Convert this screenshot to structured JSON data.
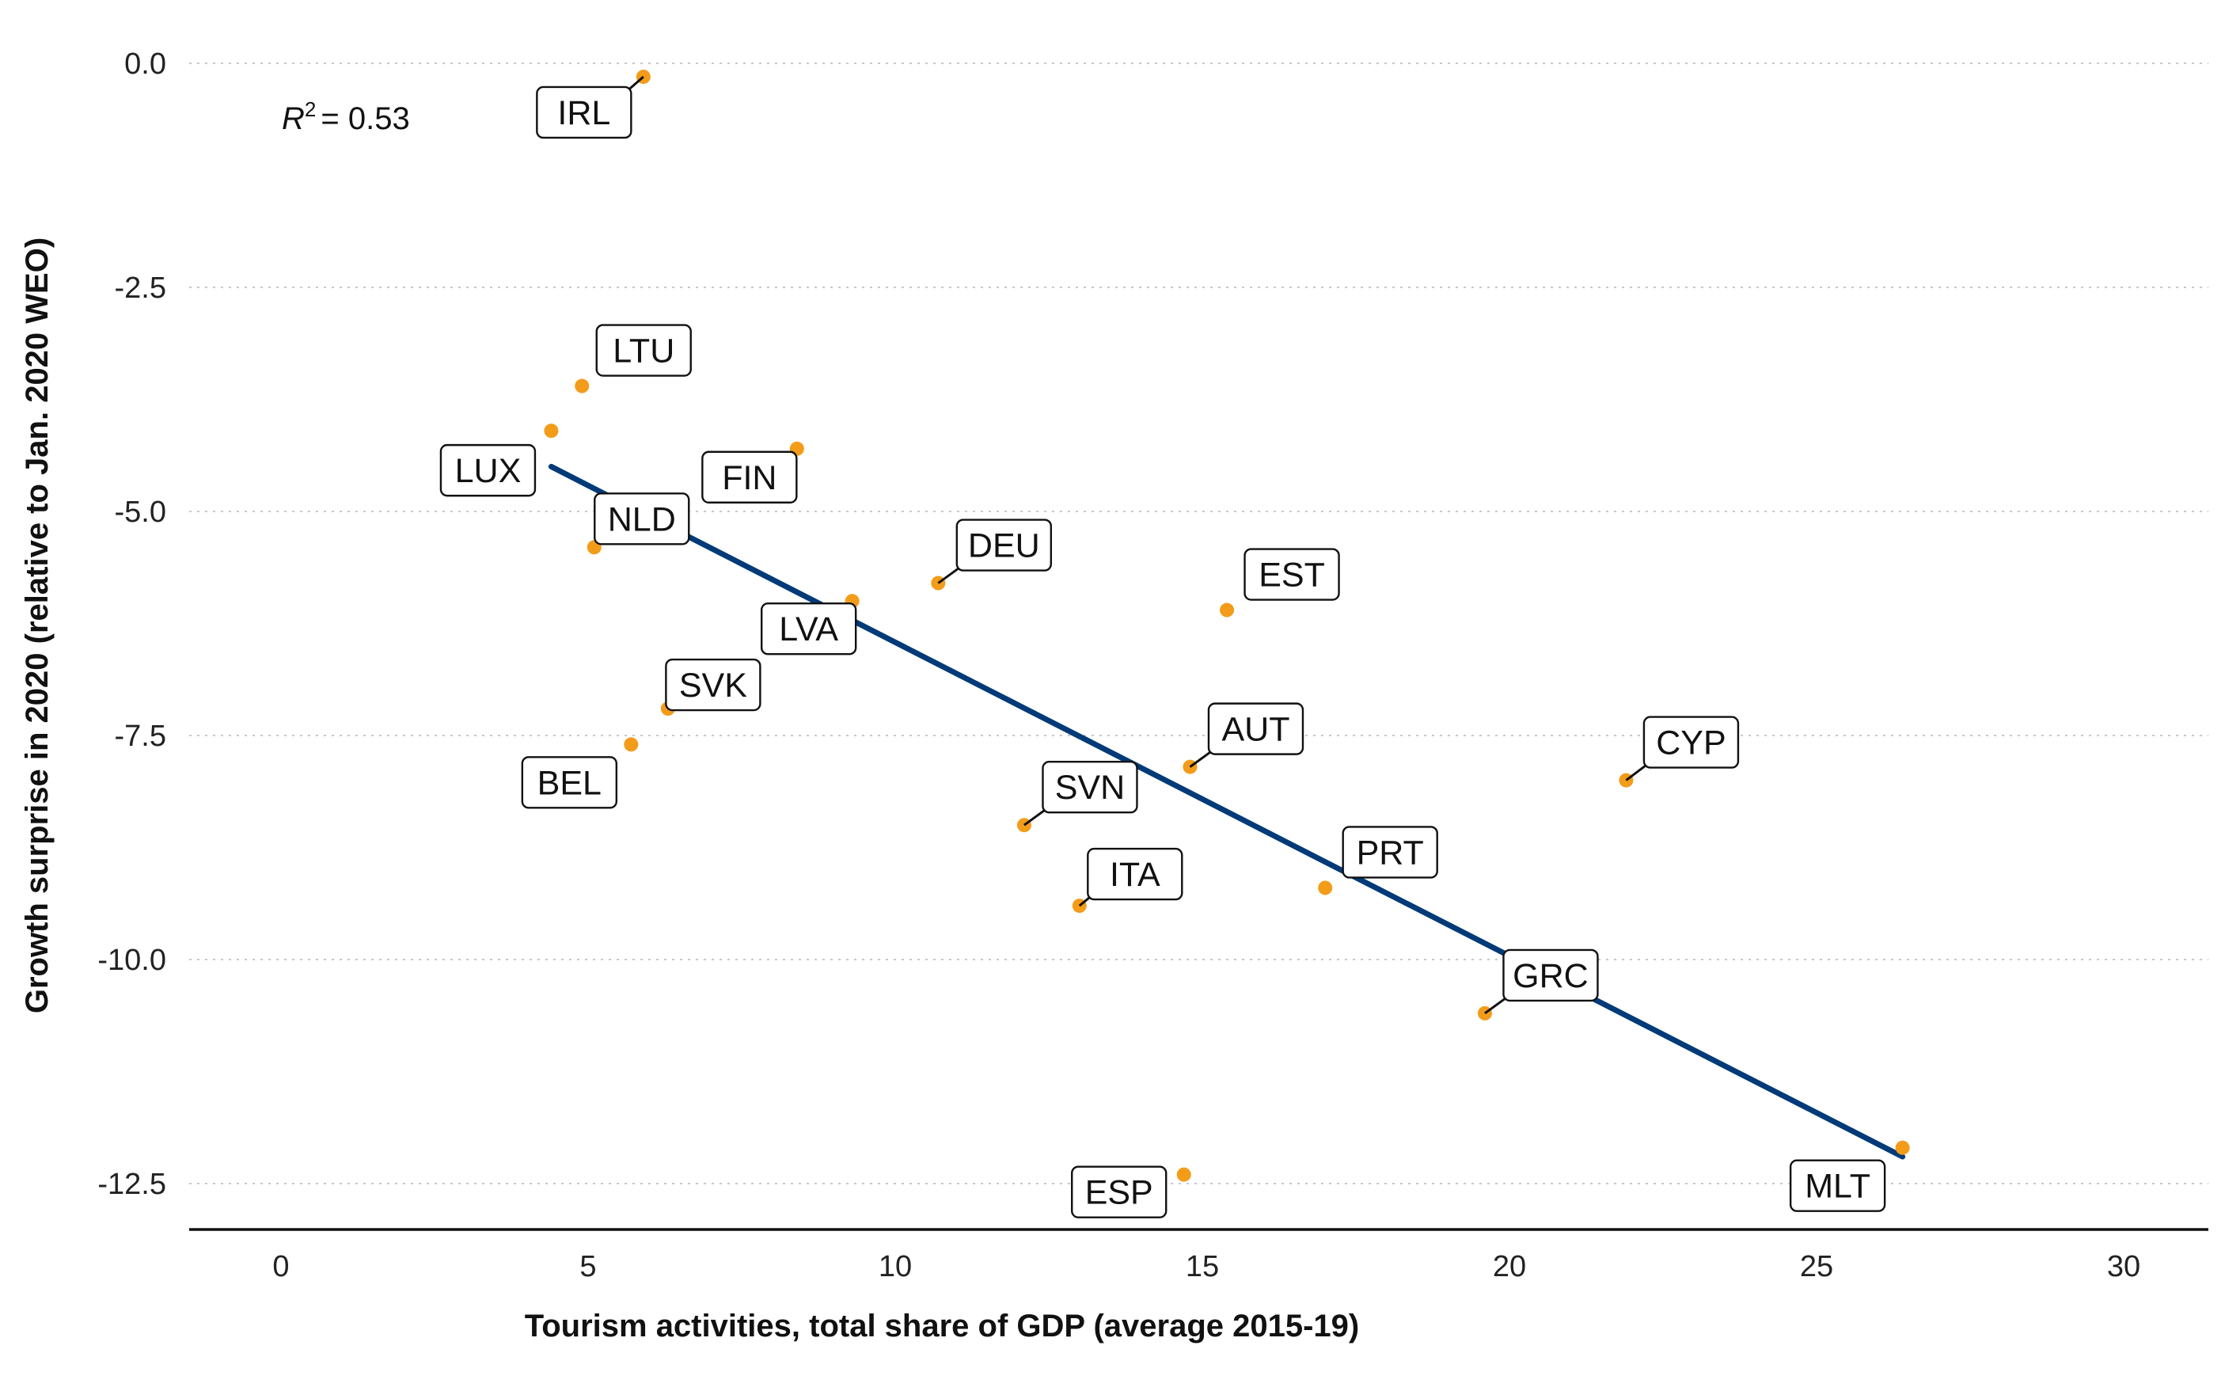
{
  "chart_data": {
    "type": "scatter",
    "xlabel": "Tourism activities, total share of GDP (average 2015-19)",
    "ylabel": "Growth surprise in 2020 (relative to Jan. 2020 WEO)",
    "xlim": [
      -1.5,
      31.5
    ],
    "ylim": [
      -13.0,
      0.2
    ],
    "x_ticks": [
      0,
      5,
      10,
      15,
      20,
      25,
      30
    ],
    "x_tick_labels": [
      "0",
      "5",
      "10",
      "15",
      "20",
      "25",
      "30"
    ],
    "y_ticks": [
      0.0,
      -2.5,
      -5.0,
      -7.5,
      -10.0,
      -12.5
    ],
    "y_tick_labels": [
      "0.0",
      "-2.5",
      "-5.0",
      "-7.5",
      "-10.0",
      "-12.5"
    ],
    "grid": "horizontal dotted",
    "annotation": {
      "r2_letter": "R",
      "r2_exp": "2",
      "r2_value": "= 0.53"
    },
    "fit_line": {
      "x": [
        4.4,
        26.4
      ],
      "y": [
        -4.5,
        -12.2
      ],
      "color": "#003a78"
    },
    "point_color": "#f39c1a",
    "points": [
      {
        "label": "IRL",
        "x": 5.9,
        "y": -0.15
      },
      {
        "label": "LTU",
        "x": 4.9,
        "y": -3.6
      },
      {
        "label": "LUX",
        "x": 4.4,
        "y": -4.1
      },
      {
        "label": "FIN",
        "x": 8.4,
        "y": -4.3
      },
      {
        "label": "NLD",
        "x": 5.1,
        "y": -5.4
      },
      {
        "label": "DEU",
        "x": 10.7,
        "y": -5.8
      },
      {
        "label": "LVA",
        "x": 9.3,
        "y": -6.0
      },
      {
        "label": "EST",
        "x": 15.4,
        "y": -6.1
      },
      {
        "label": "SVK",
        "x": 6.3,
        "y": -7.2
      },
      {
        "label": "BEL",
        "x": 5.7,
        "y": -7.6
      },
      {
        "label": "AUT",
        "x": 14.8,
        "y": -7.85
      },
      {
        "label": "CYP",
        "x": 21.9,
        "y": -8.0
      },
      {
        "label": "SVN",
        "x": 12.1,
        "y": -8.5
      },
      {
        "label": "PRT",
        "x": 17.0,
        "y": -9.2
      },
      {
        "label": "ITA",
        "x": 13.0,
        "y": -9.4
      },
      {
        "label": "GRC",
        "x": 19.6,
        "y": -10.6
      },
      {
        "label": "ESP",
        "x": 14.7,
        "y": -12.4
      },
      {
        "label": "MLT",
        "x": 26.4,
        "y": -12.1
      }
    ]
  }
}
